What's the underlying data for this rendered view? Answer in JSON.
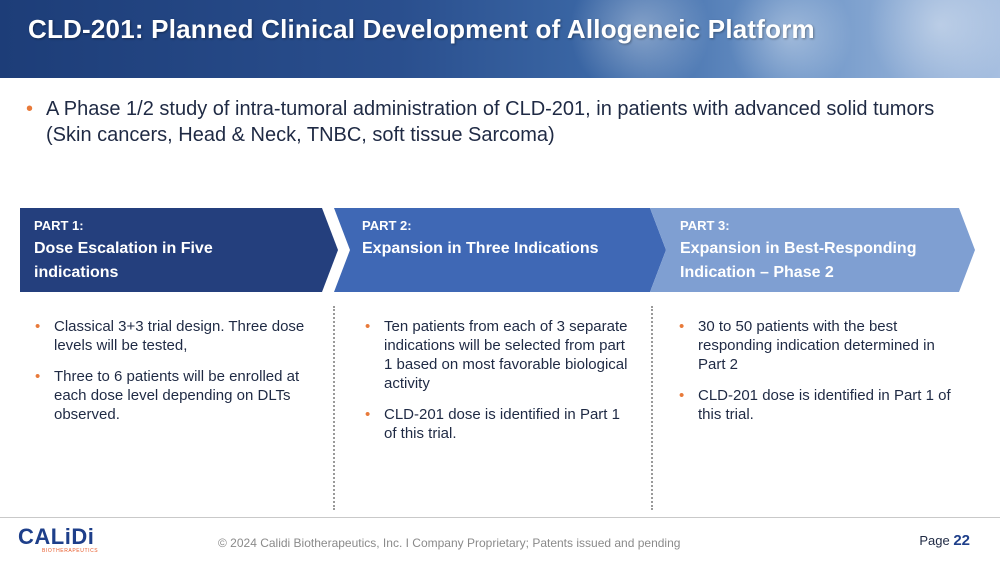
{
  "header": {
    "title": "CLD-201: Planned Clinical Development of Allogeneic Platform"
  },
  "intro": {
    "bullet": "•",
    "text": "A Phase 1/2 study of intra-tumoral administration of CLD-201, in patients with advanced solid tumors (Skin cancers, Head & Neck, TNBC, soft tissue Sarcoma)"
  },
  "phases": [
    {
      "part": "PART 1:",
      "title": "Dose Escalation in Five indications",
      "bullets": [
        "Classical 3+3 trial design. Three dose levels will be tested,",
        "Three to 6 patients will be enrolled at each dose level depending on DLTs observed."
      ]
    },
    {
      "part": "PART 2:",
      "title": "Expansion in Three Indications",
      "bullets": [
        "Ten patients from each of 3 separate indications will be selected from part 1 based on most favorable biological activity",
        "CLD-201 dose is identified in Part 1 of this trial."
      ]
    },
    {
      "part": "PART 3:",
      "title": "Expansion in Best-Responding Indication – Phase 2",
      "bullets": [
        "30 to 50 patients with the best responding indication determined in Part 2",
        "CLD-201 dose is identified in Part 1 of this trial."
      ]
    }
  ],
  "footer": {
    "logo_word": "CALiDi",
    "logo_sub": "BIOTHERAPEUTICS",
    "copyright": "© 2024 Calidi Biotherapeutics, Inc. I  Company Proprietary; Patents issued and pending",
    "page_label": "Page",
    "page_number": "22"
  },
  "colors": {
    "part1": "#243f7d",
    "part2": "#3f68b5",
    "part3": "#7f9fd2",
    "bullet": "#e87a3a"
  }
}
